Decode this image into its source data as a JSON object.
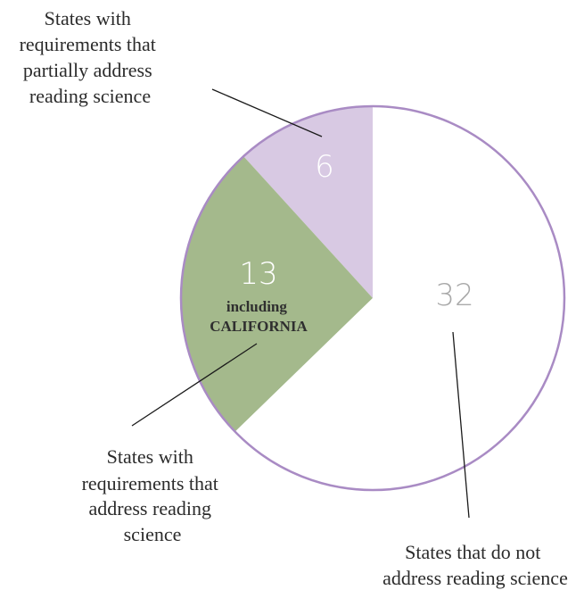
{
  "chart_data": {
    "type": "pie",
    "total": 51,
    "slices": [
      {
        "value": 6,
        "label_lines": [
          "States with",
          "requirements that",
          "partially address",
          "reading science"
        ],
        "color": "#d8c9e3",
        "value_color": "#ffffff"
      },
      {
        "value": 13,
        "label_lines": [
          "States with",
          "requirements that",
          "address reading",
          "science"
        ],
        "note_lines": [
          "including",
          "CALIFORNIA"
        ],
        "color": "#a4b98c",
        "value_color": "#ffffff"
      },
      {
        "value": 32,
        "label_lines": [
          "States that do not",
          "address reading science"
        ],
        "color": "#ffffff",
        "value_color": "#a9a9a9"
      }
    ],
    "outline_color": "#a98bc4"
  }
}
